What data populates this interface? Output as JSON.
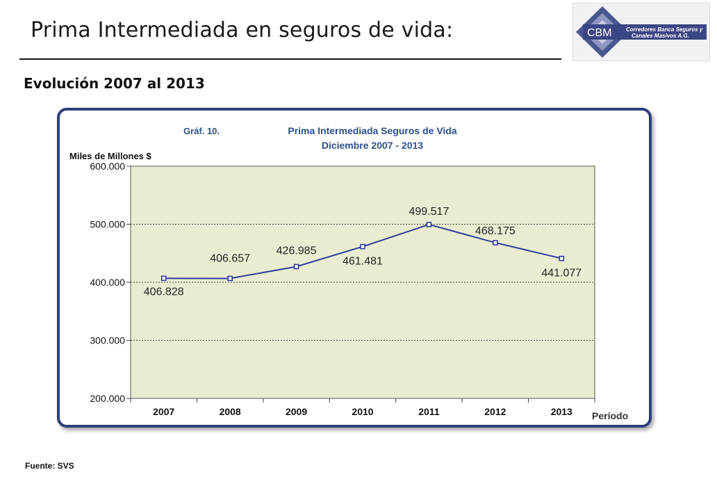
{
  "slide": {
    "title": "Prima Intermediada en seguros de vida:",
    "subtitle": "Evolución 2007 al 2013",
    "source": "Fuente: SVS"
  },
  "logo": {
    "text": "CBM",
    "tagline_line1": "Corredores Banca Seguros y",
    "tagline_line2": "Canales Masivos A.G."
  },
  "chart_data": {
    "type": "line",
    "figure_label": "Gráf. 10.",
    "title": "Prima Intermediada Seguros de Vida",
    "subtitle": "Diciembre 2007 - 2013",
    "ylabel": "Miles de Millones $",
    "xlabel": "Período",
    "ylim": [
      200,
      600
    ],
    "yticks": [
      200,
      300,
      400,
      500,
      600
    ],
    "ytick_labels": [
      "200.000",
      "300.000",
      "400.000",
      "500.000",
      "600.000"
    ],
    "categories": [
      "2007",
      "2008",
      "2009",
      "2010",
      "2011",
      "2012",
      "2013"
    ],
    "series": [
      {
        "values": [
          406.828,
          406.657,
          426.985,
          461.481,
          499.517,
          468.175,
          441.077
        ],
        "labels": [
          "406.828",
          "406.657",
          "426.985",
          "461.481",
          "499.517",
          "468.175",
          "441.077"
        ]
      }
    ],
    "grid": "horizontal dotted",
    "colors": {
      "plot_background": "#eaecd2",
      "line": "#2e3b9c",
      "frame": "#2d3f7a",
      "title_text": "#2a4f8c"
    }
  }
}
